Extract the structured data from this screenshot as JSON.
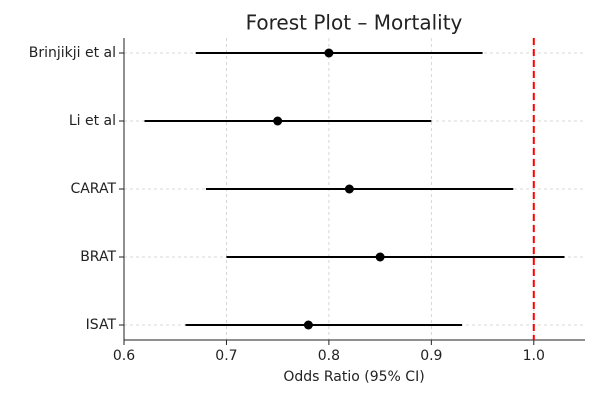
{
  "chart_data": {
    "type": "forest",
    "title": "Forest Plot – Mortality",
    "x_label": "Odds Ratio (95% CI)",
    "categories": [
      "Brinjikji et al",
      "Li et al",
      "CARAT",
      "BRAT",
      "ISAT"
    ],
    "values": [
      0.8,
      0.75,
      0.82,
      0.85,
      0.78
    ],
    "lower": [
      0.67,
      0.62,
      0.68,
      0.7,
      0.66
    ],
    "upper": [
      0.95,
      0.9,
      0.98,
      1.03,
      0.93
    ],
    "color": "#000000",
    "reference_line": 1.0,
    "reference_color": "#ff0000",
    "xlim": [
      0.6,
      1.05
    ],
    "xticks": [
      {
        "value": 0.6,
        "label": "0.6"
      },
      {
        "value": 0.7,
        "label": "0.7"
      },
      {
        "value": 0.8,
        "label": "0.8"
      },
      {
        "value": 0.9,
        "label": "0.9"
      },
      {
        "value": 1.0,
        "label": "1.0"
      }
    ],
    "grid": true
  }
}
